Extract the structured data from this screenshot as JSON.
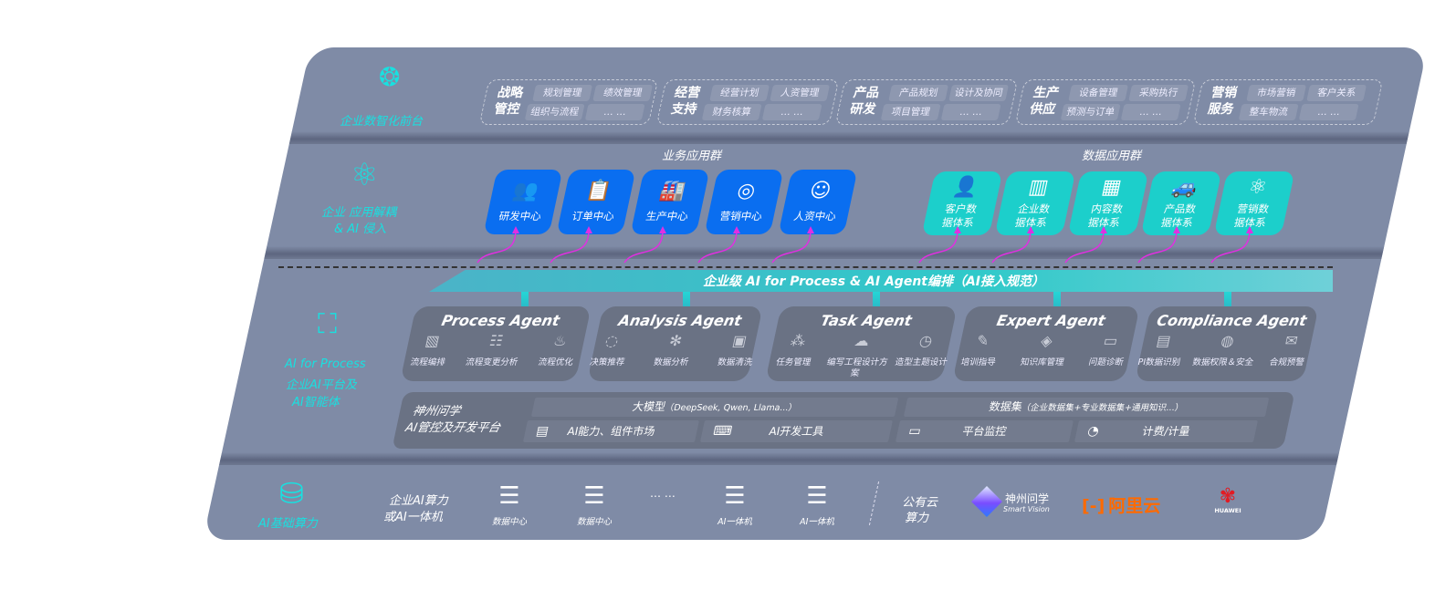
{
  "top_layer": {
    "label": "企业数智化前台",
    "icon": "brain-icon",
    "groups": [
      {
        "title": "战略管控",
        "items": [
          "规划管理",
          "绩效管理",
          "组织与流程",
          "… …"
        ]
      },
      {
        "title": "经营支持",
        "items": [
          "经营计划",
          "人资管理",
          "财务核算",
          "… …"
        ]
      },
      {
        "title": "产品研发",
        "items": [
          "产品规划",
          "设计及协同",
          "项目管理",
          "… …"
        ]
      },
      {
        "title": "生产供应",
        "items": [
          "设备管理",
          "采购执行",
          "预测与订单",
          "… …"
        ]
      },
      {
        "title": "营销服务",
        "items": [
          "市场营销",
          "客户关系",
          "整车物流",
          "… …"
        ]
      }
    ]
  },
  "app_layer": {
    "label_1": "企业 应用解耦",
    "label_2": "& AI 侵入",
    "icon": "molecule-icon",
    "business_title": "业务应用群",
    "data_title": "数据应用群",
    "business_apps": [
      {
        "label": "研发中心",
        "icon": "users-icon"
      },
      {
        "label": "订单中心",
        "icon": "clipboard-icon"
      },
      {
        "label": "生产中心",
        "icon": "factory-icon"
      },
      {
        "label": "营销中心",
        "icon": "target-icon"
      },
      {
        "label": "人资中心",
        "icon": "person-icon"
      }
    ],
    "data_apps": [
      {
        "label": "客户数据体系",
        "icon": "user-icon"
      },
      {
        "label": "企业数据体系",
        "icon": "building-icon"
      },
      {
        "label": "内容数据体系",
        "icon": "books-icon"
      },
      {
        "label": "产品数据体系",
        "icon": "car-icon"
      },
      {
        "label": "营销数据体系",
        "icon": "atom-icon"
      }
    ]
  },
  "orchestration": {
    "label": "企业级 AI for Process & AI Agent编排（AI接入规范）",
    "color": "#1ccfcb"
  },
  "ai_layer": {
    "label_1": "AI for Process",
    "label_2": "企业AI平台及",
    "label_3": "AI智能体",
    "icon": "face-scan-icon",
    "agents": [
      {
        "name": "Process Agent",
        "items": [
          "流程编排",
          "流程变更分析",
          "流程优化"
        ]
      },
      {
        "name": "Analysis Agent",
        "items": [
          "决策推荐",
          "数据分析",
          "数据清洗"
        ]
      },
      {
        "name": "Task Agent",
        "items": [
          "任务管理",
          "编写工程设计方案",
          "造型主题设计"
        ]
      },
      {
        "name": "Expert Agent",
        "items": [
          "培训指导",
          "知识库管理",
          "问题诊断"
        ]
      },
      {
        "name": "Compliance Agent",
        "items": [
          "PI数据识别",
          "数据权限＆安全",
          "合规预警"
        ]
      }
    ],
    "platform": {
      "title_1": "神州问学",
      "title_2": "AI管控及开发平台",
      "model_label": "大模型",
      "model_note": "（DeepSeek, Qwen, Llama...）",
      "dataset_label": "数据集",
      "dataset_note": "（企业数据集+专业数据集+通用知识...）",
      "tools": [
        {
          "label": "AI能力、组件市场",
          "icon": "market-icon"
        },
        {
          "label": "AI开发工具",
          "icon": "dev-tool-icon"
        },
        {
          "label": "平台监控",
          "icon": "monitor-icon"
        },
        {
          "label": "计费/计量",
          "icon": "gauge-icon"
        }
      ]
    }
  },
  "infra_layer": {
    "label": "AI基础算力",
    "icon": "database-icon",
    "enterprise_1": "企业AI算力",
    "enterprise_2": "或AI一体机",
    "servers": [
      "数据中心",
      "数据中心",
      "AI一体机",
      "AI一体机"
    ],
    "ellipsis": "… …",
    "cloud_1": "公有云",
    "cloud_2": "算力",
    "logos": {
      "smart_vision_cn": "神州问学",
      "smart_vision_en": "Smart Vision",
      "aliyun": "阿里云",
      "huawei": "HUAWEI"
    }
  },
  "colors": {
    "panel": "#7f8ba6",
    "business_card": "#0a6ef0",
    "data_card": "#1ccfcb",
    "accent_label": "#19e0e0",
    "arrow": "#e030e0",
    "aliyun": "#ff6a00",
    "huawei": "#e21b23"
  }
}
